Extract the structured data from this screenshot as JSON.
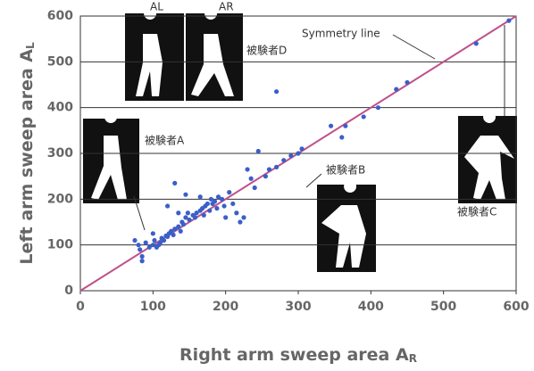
{
  "chart_data": {
    "type": "scatter",
    "xlabel": {
      "text": "Right arm sweep area A",
      "subscript": "R"
    },
    "ylabel": {
      "text": "Left arm sweep area A",
      "subscript": "L"
    },
    "xlim": [
      0,
      600
    ],
    "ylim": [
      0,
      600
    ],
    "xticks": [
      0,
      100,
      200,
      300,
      400,
      500,
      600
    ],
    "yticks": [
      0,
      100,
      200,
      300,
      400,
      500,
      600
    ],
    "grid": true,
    "line_color": "#c0508a",
    "series": [
      {
        "color": "#3a5fc8",
        "x": [
          75,
          80,
          82,
          85,
          85,
          90,
          95,
          100,
          102,
          105,
          108,
          110,
          112,
          115,
          118,
          120,
          122,
          125,
          128,
          130,
          135,
          138,
          140,
          142,
          145,
          148,
          150,
          155,
          158,
          160,
          165,
          168,
          170,
          172,
          175,
          178,
          180,
          182,
          185,
          188,
          190,
          195,
          198,
          200,
          205,
          210,
          215,
          220,
          225,
          230,
          235,
          240,
          245,
          255,
          260,
          270,
          280,
          290,
          300,
          305,
          120,
          130,
          135,
          145,
          165,
          100,
          345,
          360,
          365,
          390,
          410,
          435,
          450,
          545,
          590,
          270
        ],
        "y": [
          110,
          100,
          90,
          75,
          65,
          105,
          95,
          100,
          110,
          95,
          100,
          105,
          115,
          110,
          120,
          118,
          125,
          130,
          122,
          135,
          140,
          130,
          150,
          145,
          160,
          170,
          155,
          165,
          160,
          170,
          175,
          180,
          165,
          185,
          190,
          175,
          200,
          190,
          195,
          180,
          205,
          200,
          185,
          160,
          215,
          190,
          170,
          150,
          160,
          265,
          245,
          225,
          305,
          250,
          265,
          270,
          285,
          295,
          300,
          310,
          185,
          235,
          170,
          210,
          205,
          125,
          360,
          335,
          360,
          380,
          400,
          440,
          455,
          540,
          590,
          435
        ]
      }
    ]
  },
  "annotations": {
    "symmetry": "Symmetry line",
    "a": "被験者A",
    "b": "被験者B",
    "c": "被験者C",
    "d": "被験者D",
    "al": "AL",
    "ar": "AR"
  }
}
